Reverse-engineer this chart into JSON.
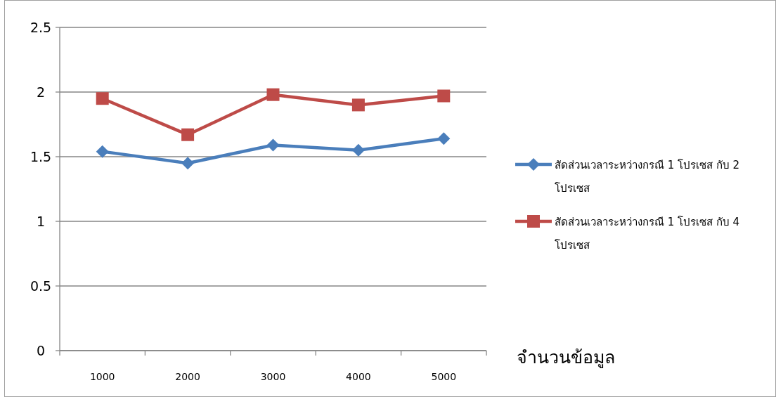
{
  "chart_data": {
    "type": "line",
    "xlabel": "จำนวนข้อมูล",
    "categories": [
      "1000",
      "2000",
      "3000",
      "4000",
      "5000"
    ],
    "series": [
      {
        "name": "สัดส่วนเวลาระหว่างกรณี 1 โปรเซส กับ 2 โปรเซส",
        "color": "#4a7ebb",
        "marker": "diamond",
        "values": [
          1.54,
          1.45,
          1.59,
          1.55,
          1.64
        ]
      },
      {
        "name": "สัดส่วนเวลาระหว่างกรณี 1 โปรเซส กับ 4 โปรเซส",
        "color": "#be4b48",
        "marker": "square",
        "values": [
          1.95,
          1.67,
          1.98,
          1.9,
          1.97
        ]
      }
    ],
    "ylim": [
      0,
      2.5
    ],
    "yticks": [
      0,
      0.5,
      1,
      1.5,
      2,
      2.5
    ],
    "grid": "y",
    "legend": "right",
    "line_style": "solid"
  }
}
